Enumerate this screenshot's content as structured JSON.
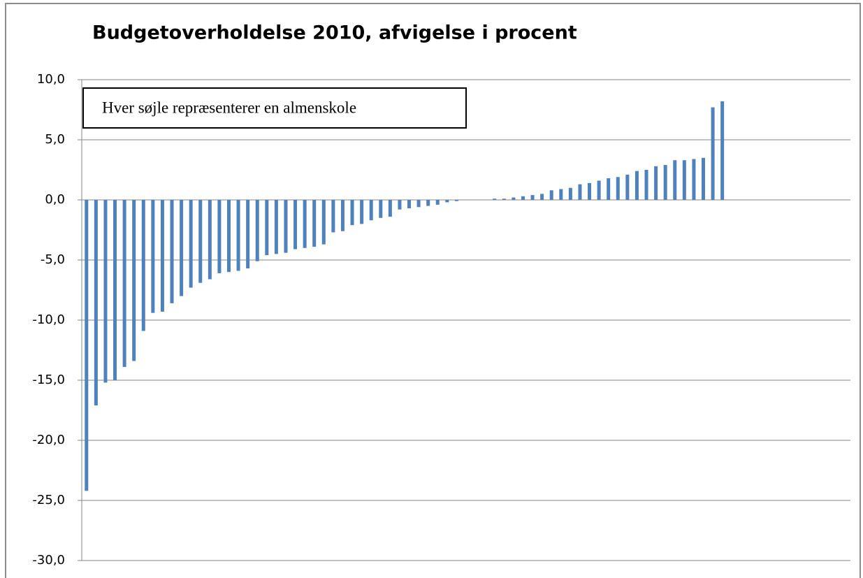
{
  "chart_data": {
    "type": "bar",
    "title": "Budgetoverholdelse 2010, afvigelse i procent",
    "annotation": "Hver søjle repræsenterer en almenskole",
    "color": "#4f81bd",
    "values": [
      -24.2,
      -17.1,
      -15.2,
      -15.0,
      -13.9,
      -13.4,
      -10.9,
      -9.4,
      -9.3,
      -8.6,
      -8.0,
      -7.3,
      -6.9,
      -6.6,
      -6.1,
      -6.0,
      -5.9,
      -5.7,
      -5.1,
      -4.6,
      -4.5,
      -4.4,
      -4.1,
      -4.0,
      -3.9,
      -3.7,
      -2.7,
      -2.6,
      -2.1,
      -2.0,
      -1.7,
      -1.5,
      -1.4,
      -0.8,
      -0.7,
      -0.6,
      -0.5,
      -0.4,
      -0.2,
      -0.1,
      0,
      0,
      0,
      0.1,
      0.1,
      0.2,
      0.3,
      0.4,
      0.5,
      0.8,
      0.9,
      1.0,
      1.3,
      1.4,
      1.6,
      1.8,
      1.9,
      2.1,
      2.4,
      2.5,
      2.8,
      2.9,
      3.3,
      3.3,
      3.4,
      3.5,
      7.7,
      8.2,
      null,
      null,
      null,
      null,
      null,
      null,
      null,
      null,
      null,
      null,
      null,
      null,
      null
    ],
    "ylim": [
      -30,
      10
    ],
    "yticks": [
      {
        "value": 10,
        "label": "10,0"
      },
      {
        "value": 5,
        "label": "5,0"
      },
      {
        "value": 0,
        "label": "0,0"
      },
      {
        "value": -5,
        "label": "-5,0"
      },
      {
        "value": -10,
        "label": "-10,0"
      },
      {
        "value": -15,
        "label": "-15,0"
      },
      {
        "value": -20,
        "label": "-20,0"
      },
      {
        "value": -25,
        "label": "-25,0"
      },
      {
        "value": -30,
        "label": "-30,0"
      }
    ],
    "grid": true
  }
}
